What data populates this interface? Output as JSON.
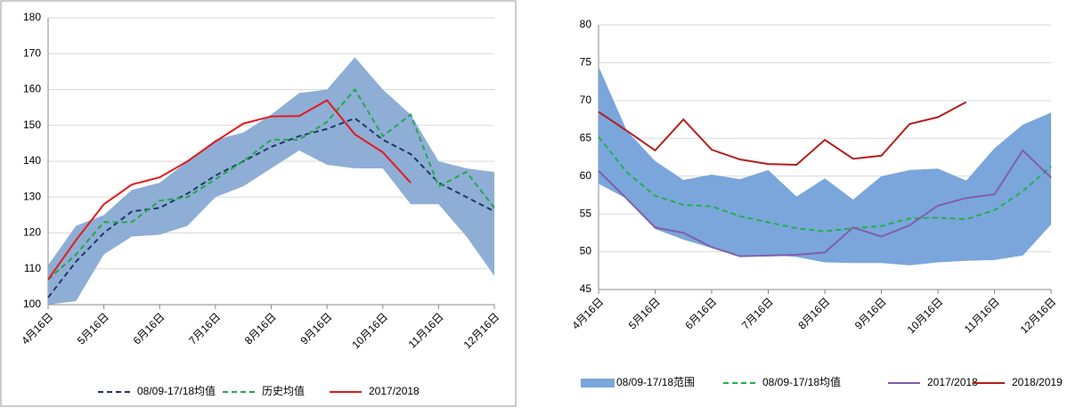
{
  "chart_data": [
    {
      "type": "line",
      "categories": [
        "4月16日",
        null,
        "5月16日",
        null,
        "6月16日",
        null,
        "7月16日",
        null,
        "8月16日",
        null,
        "9月16日",
        null,
        "10月16日",
        null,
        "11月16日",
        null,
        "12月16日"
      ],
      "ylim": [
        100,
        180
      ],
      "yticks": [
        100,
        110,
        120,
        130,
        140,
        150,
        160,
        170,
        180
      ],
      "grid": true,
      "band": {
        "color": "#8eaed6",
        "high": [
          111,
          122,
          125,
          132,
          134,
          140,
          146,
          148,
          153,
          159,
          160,
          169,
          160,
          153,
          140,
          138,
          137
        ],
        "low": [
          100,
          101,
          114,
          119,
          119.5,
          122,
          130,
          133,
          138,
          143,
          139,
          138,
          138,
          128,
          128,
          119,
          108
        ]
      },
      "series": [
        {
          "name": "08/09-17/18均值",
          "color": "#1f3864",
          "dash": true,
          "values": [
            102,
            112,
            120,
            126,
            127,
            131,
            136,
            140,
            144,
            147,
            149,
            152,
            146,
            142,
            134,
            130,
            126
          ]
        },
        {
          "name": "历史均值",
          "color": "#22a84a",
          "dash": true,
          "values": [
            107,
            114,
            123,
            123,
            129,
            130,
            135,
            140,
            146,
            146,
            151,
            160,
            147,
            153,
            133,
            137,
            127
          ]
        },
        {
          "name": "2017/2018",
          "color": "#e31a1c",
          "dash": false,
          "values": [
            107,
            118,
            128,
            133.5,
            135.5,
            140,
            145.5,
            150.5,
            152.5,
            152.6,
            157,
            147.5,
            142.5,
            134,
            null,
            null,
            null
          ]
        }
      ]
    },
    {
      "type": "line",
      "categories": [
        "4月16日",
        null,
        "5月16日",
        null,
        "6月16日",
        null,
        "7月16日",
        null,
        "8月16日",
        null,
        "9月16日",
        null,
        "10月16日",
        null,
        "11月16日",
        null,
        "12月16日"
      ],
      "ylim": [
        45,
        80
      ],
      "yticks": [
        45,
        50,
        55,
        60,
        65,
        70,
        75,
        80
      ],
      "grid": true,
      "band": {
        "name": "08/09-17/18范围",
        "color": "#7aa6dc",
        "high": [
          74.5,
          66,
          62,
          59.5,
          60.2,
          59.6,
          60.8,
          57.3,
          59.7,
          56.9,
          60,
          60.8,
          61,
          59.4,
          63.7,
          66.8,
          68.4
        ],
        "low": [
          59,
          57,
          53,
          51.6,
          50.5,
          49.5,
          49.6,
          49.3,
          48.6,
          48.5,
          48.5,
          48.2,
          48.6,
          48.8,
          48.9,
          49.5,
          53.6
        ]
      },
      "series": [
        {
          "name": "08/09-17/18均值",
          "color": "#22b04a",
          "dash": true,
          "values": [
            65.2,
            60.5,
            57.4,
            56.2,
            56,
            54.7,
            53.9,
            53.1,
            52.7,
            53.1,
            53.4,
            54.4,
            54.5,
            54.3,
            55.5,
            58,
            61.3
          ]
        },
        {
          "name": "2017/2018",
          "color": "#7f5fa8",
          "dash": false,
          "values": [
            60.7,
            57,
            53.2,
            52.5,
            50.6,
            49.4,
            49.5,
            49.6,
            49.9,
            53.2,
            52,
            53.5,
            56.1,
            57.1,
            57.6,
            63.4,
            59.8
          ]
        },
        {
          "name": "2018/2019",
          "color": "#b41e1e",
          "dash": false,
          "values": [
            68.5,
            66,
            63.4,
            67.5,
            63.5,
            62.2,
            61.6,
            61.5,
            64.8,
            62.3,
            62.7,
            66.9,
            67.8,
            69.8,
            null,
            null,
            null
          ]
        }
      ]
    }
  ]
}
